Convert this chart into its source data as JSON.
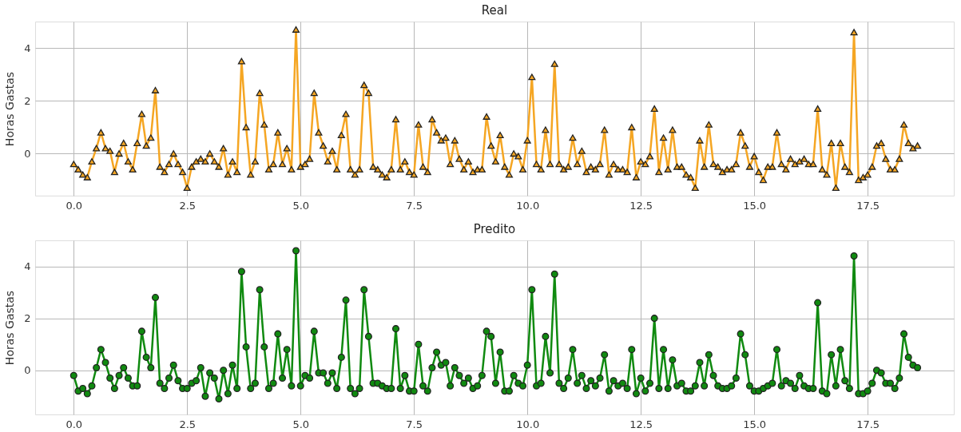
{
  "chart_data": [
    {
      "type": "line",
      "title": "Real",
      "ylabel": "Horas Gastas",
      "marker": "triangle",
      "line_style": "solid",
      "grid": true,
      "xlim": [
        -0.85,
        19.4
      ],
      "ylim": [
        -1.6,
        5.0
      ],
      "xticks": [
        {
          "value": 0,
          "label": "0.0"
        },
        {
          "value": 2.5,
          "label": "2.5"
        },
        {
          "value": 5,
          "label": "5.0"
        },
        {
          "value": 7.5,
          "label": "7.5"
        },
        {
          "value": 10,
          "label": "10.0"
        },
        {
          "value": 12.5,
          "label": "12.5"
        },
        {
          "value": 15,
          "label": "15.0"
        },
        {
          "value": 17.5,
          "label": "17.5"
        }
      ],
      "yticks": [
        0,
        2,
        4
      ],
      "x": [
        0,
        0.1,
        0.2,
        0.3,
        0.4,
        0.5,
        0.6,
        0.7,
        0.8,
        0.9,
        1.0,
        1.1,
        1.2,
        1.3,
        1.4,
        1.5,
        1.6,
        1.7,
        1.8,
        1.9,
        2.0,
        2.1,
        2.2,
        2.3,
        2.4,
        2.5,
        2.6,
        2.7,
        2.8,
        2.9,
        3.0,
        3.1,
        3.2,
        3.3,
        3.4,
        3.5,
        3.6,
        3.7,
        3.8,
        3.9,
        4.0,
        4.1,
        4.2,
        4.3,
        4.4,
        4.5,
        4.6,
        4.7,
        4.8,
        4.9,
        5.0,
        5.1,
        5.2,
        5.3,
        5.4,
        5.5,
        5.6,
        5.7,
        5.8,
        5.9,
        6.0,
        6.1,
        6.2,
        6.3,
        6.4,
        6.5,
        6.6,
        6.7,
        6.8,
        6.9,
        7.0,
        7.1,
        7.2,
        7.3,
        7.4,
        7.5,
        7.6,
        7.7,
        7.8,
        7.9,
        8.0,
        8.1,
        8.2,
        8.3,
        8.4,
        8.5,
        8.6,
        8.7,
        8.8,
        8.9,
        9.0,
        9.1,
        9.2,
        9.3,
        9.4,
        9.5,
        9.6,
        9.7,
        9.8,
        9.9,
        10.0,
        10.1,
        10.2,
        10.3,
        10.4,
        10.5,
        10.6,
        10.7,
        10.8,
        10.9,
        11.0,
        11.1,
        11.2,
        11.3,
        11.4,
        11.5,
        11.6,
        11.7,
        11.8,
        11.9,
        12.0,
        12.1,
        12.2,
        12.3,
        12.4,
        12.5,
        12.6,
        12.7,
        12.8,
        12.9,
        13.0,
        13.1,
        13.2,
        13.3,
        13.4,
        13.5,
        13.6,
        13.7,
        13.8,
        13.9,
        14.0,
        14.1,
        14.2,
        14.3,
        14.4,
        14.5,
        14.6,
        14.7,
        14.8,
        14.9,
        15.0,
        15.1,
        15.2,
        15.3,
        15.4,
        15.5,
        15.6,
        15.7,
        15.8,
        15.9,
        16.0,
        16.1,
        16.2,
        16.3,
        16.4,
        16.5,
        16.6,
        16.7,
        16.8,
        16.9,
        17.0,
        17.1,
        17.2,
        17.3,
        17.4,
        17.5,
        17.6,
        17.7,
        17.8,
        17.9,
        18.0,
        18.1,
        18.2,
        18.3,
        18.4,
        18.5,
        18.6
      ],
      "series": [
        {
          "color": "#f5a623",
          "values": [
            -0.4,
            -0.6,
            -0.8,
            -0.9,
            -0.3,
            0.2,
            0.8,
            0.2,
            0.1,
            -0.7,
            0.0,
            0.4,
            -0.3,
            -0.6,
            0.4,
            1.5,
            0.3,
            0.6,
            2.4,
            -0.5,
            -0.7,
            -0.4,
            0.0,
            -0.4,
            -0.7,
            -1.3,
            -0.5,
            -0.3,
            -0.2,
            -0.3,
            0.0,
            -0.3,
            -0.5,
            0.2,
            -0.8,
            -0.3,
            -0.7,
            3.5,
            1.0,
            -0.8,
            -0.3,
            2.3,
            1.1,
            -0.6,
            -0.4,
            0.8,
            -0.4,
            0.2,
            -0.6,
            4.7,
            -0.5,
            -0.4,
            -0.2,
            2.3,
            0.8,
            0.3,
            -0.3,
            0.1,
            -0.6,
            0.7,
            1.5,
            -0.6,
            -0.8,
            -0.6,
            2.6,
            2.3,
            -0.5,
            -0.6,
            -0.8,
            -0.9,
            -0.6,
            1.3,
            -0.6,
            -0.3,
            -0.7,
            -0.8,
            1.1,
            -0.5,
            -0.7,
            1.3,
            0.8,
            0.5,
            0.6,
            -0.4,
            0.5,
            -0.2,
            -0.6,
            -0.3,
            -0.7,
            -0.6,
            -0.6,
            1.4,
            0.3,
            -0.3,
            0.7,
            -0.5,
            -0.8,
            0.0,
            -0.1,
            -0.6,
            0.5,
            2.9,
            -0.4,
            -0.6,
            0.9,
            -0.4,
            3.4,
            -0.4,
            -0.6,
            -0.5,
            0.6,
            -0.4,
            0.1,
            -0.7,
            -0.5,
            -0.6,
            -0.4,
            0.9,
            -0.8,
            -0.4,
            -0.6,
            -0.6,
            -0.7,
            1.0,
            -0.9,
            -0.3,
            -0.4,
            -0.1,
            1.7,
            -0.7,
            0.6,
            -0.6,
            0.9,
            -0.5,
            -0.5,
            -0.8,
            -0.9,
            -1.3,
            0.5,
            -0.5,
            1.1,
            -0.4,
            -0.5,
            -0.7,
            -0.6,
            -0.6,
            -0.4,
            0.8,
            0.3,
            -0.5,
            -0.1,
            -0.7,
            -1.0,
            -0.5,
            -0.5,
            0.8,
            -0.4,
            -0.6,
            -0.2,
            -0.4,
            -0.3,
            -0.2,
            -0.4,
            -0.4,
            1.7,
            -0.6,
            -0.8,
            0.4,
            -1.3,
            0.4,
            -0.5,
            -0.7,
            4.6,
            -1.0,
            -0.9,
            -0.8,
            -0.5,
            0.3,
            0.4,
            -0.2,
            -0.6,
            -0.6,
            -0.2,
            1.1,
            0.4,
            0.2,
            0.3
          ]
        }
      ]
    },
    {
      "type": "line",
      "title": "Predito",
      "ylabel": "Horas Gastas",
      "marker": "circle",
      "line_style": "solid",
      "grid": true,
      "xlim": [
        -0.85,
        19.4
      ],
      "ylim": [
        -1.7,
        5.0
      ],
      "xticks": [
        {
          "value": 0,
          "label": "0.0"
        },
        {
          "value": 2.5,
          "label": "2.5"
        },
        {
          "value": 5,
          "label": "5.0"
        },
        {
          "value": 7.5,
          "label": "7.5"
        },
        {
          "value": 10,
          "label": "10.0"
        },
        {
          "value": 12.5,
          "label": "12.5"
        },
        {
          "value": 15,
          "label": "15.0"
        },
        {
          "value": 17.5,
          "label": "17.5"
        }
      ],
      "yticks": [
        0,
        2,
        4
      ],
      "x": [
        0,
        0.1,
        0.2,
        0.3,
        0.4,
        0.5,
        0.6,
        0.7,
        0.8,
        0.9,
        1.0,
        1.1,
        1.2,
        1.3,
        1.4,
        1.5,
        1.6,
        1.7,
        1.8,
        1.9,
        2.0,
        2.1,
        2.2,
        2.3,
        2.4,
        2.5,
        2.6,
        2.7,
        2.8,
        2.9,
        3.0,
        3.1,
        3.2,
        3.3,
        3.4,
        3.5,
        3.6,
        3.7,
        3.8,
        3.9,
        4.0,
        4.1,
        4.2,
        4.3,
        4.4,
        4.5,
        4.6,
        4.7,
        4.8,
        4.9,
        5.0,
        5.1,
        5.2,
        5.3,
        5.4,
        5.5,
        5.6,
        5.7,
        5.8,
        5.9,
        6.0,
        6.1,
        6.2,
        6.3,
        6.4,
        6.5,
        6.6,
        6.7,
        6.8,
        6.9,
        7.0,
        7.1,
        7.2,
        7.3,
        7.4,
        7.5,
        7.6,
        7.7,
        7.8,
        7.9,
        8.0,
        8.1,
        8.2,
        8.3,
        8.4,
        8.5,
        8.6,
        8.7,
        8.8,
        8.9,
        9.0,
        9.1,
        9.2,
        9.3,
        9.4,
        9.5,
        9.6,
        9.7,
        9.8,
        9.9,
        10.0,
        10.1,
        10.2,
        10.3,
        10.4,
        10.5,
        10.6,
        10.7,
        10.8,
        10.9,
        11.0,
        11.1,
        11.2,
        11.3,
        11.4,
        11.5,
        11.6,
        11.7,
        11.8,
        11.9,
        12.0,
        12.1,
        12.2,
        12.3,
        12.4,
        12.5,
        12.6,
        12.7,
        12.8,
        12.9,
        13.0,
        13.1,
        13.2,
        13.3,
        13.4,
        13.5,
        13.6,
        13.7,
        13.8,
        13.9,
        14.0,
        14.1,
        14.2,
        14.3,
        14.4,
        14.5,
        14.6,
        14.7,
        14.8,
        14.9,
        15.0,
        15.1,
        15.2,
        15.3,
        15.4,
        15.5,
        15.6,
        15.7,
        15.8,
        15.9,
        16.0,
        16.1,
        16.2,
        16.3,
        16.4,
        16.5,
        16.6,
        16.7,
        16.8,
        16.9,
        17.0,
        17.1,
        17.2,
        17.3,
        17.4,
        17.5,
        17.6,
        17.7,
        17.8,
        17.9,
        18.0,
        18.1,
        18.2,
        18.3,
        18.4,
        18.5,
        18.6
      ],
      "series": [
        {
          "color": "#108a10",
          "values": [
            -0.2,
            -0.8,
            -0.7,
            -0.9,
            -0.6,
            0.1,
            0.8,
            0.3,
            -0.3,
            -0.7,
            -0.2,
            0.1,
            -0.3,
            -0.6,
            -0.6,
            1.5,
            0.5,
            0.1,
            2.8,
            -0.5,
            -0.7,
            -0.3,
            0.2,
            -0.4,
            -0.7,
            -0.7,
            -0.5,
            -0.4,
            0.1,
            -1.0,
            -0.1,
            -0.3,
            -1.1,
            0.0,
            -0.9,
            0.2,
            -0.7,
            3.8,
            0.9,
            -0.7,
            -0.5,
            3.1,
            0.9,
            -0.7,
            -0.5,
            1.4,
            -0.3,
            0.8,
            -0.6,
            4.6,
            -0.6,
            -0.2,
            -0.3,
            1.5,
            -0.1,
            -0.1,
            -0.5,
            -0.1,
            -0.7,
            0.5,
            2.7,
            -0.7,
            -0.9,
            -0.7,
            3.1,
            1.3,
            -0.5,
            -0.5,
            -0.6,
            -0.7,
            -0.7,
            1.6,
            -0.7,
            -0.2,
            -0.8,
            -0.8,
            1.0,
            -0.6,
            -0.8,
            0.1,
            0.7,
            0.2,
            0.3,
            -0.6,
            0.1,
            -0.2,
            -0.5,
            -0.3,
            -0.7,
            -0.6,
            -0.2,
            1.5,
            1.3,
            -0.5,
            0.7,
            -0.8,
            -0.8,
            -0.2,
            -0.5,
            -0.6,
            0.2,
            3.1,
            -0.6,
            -0.5,
            1.3,
            -0.1,
            3.7,
            -0.5,
            -0.7,
            -0.3,
            0.8,
            -0.5,
            -0.2,
            -0.7,
            -0.4,
            -0.6,
            -0.3,
            0.6,
            -0.8,
            -0.4,
            -0.6,
            -0.5,
            -0.7,
            0.8,
            -0.9,
            -0.3,
            -0.8,
            -0.5,
            2.0,
            -0.7,
            0.8,
            -0.7,
            0.4,
            -0.6,
            -0.5,
            -0.8,
            -0.8,
            -0.6,
            0.3,
            -0.6,
            0.6,
            -0.2,
            -0.6,
            -0.7,
            -0.7,
            -0.6,
            -0.3,
            1.4,
            0.6,
            -0.6,
            -0.8,
            -0.8,
            -0.7,
            -0.6,
            -0.5,
            0.8,
            -0.6,
            -0.4,
            -0.5,
            -0.7,
            -0.2,
            -0.6,
            -0.7,
            -0.7,
            2.6,
            -0.8,
            -0.9,
            0.6,
            -0.6,
            0.8,
            -0.4,
            -0.7,
            4.4,
            -0.9,
            -0.9,
            -0.8,
            -0.5,
            0.0,
            -0.1,
            -0.5,
            -0.5,
            -0.7,
            -0.3,
            1.4,
            0.5,
            0.2,
            0.1
          ]
        }
      ]
    }
  ]
}
